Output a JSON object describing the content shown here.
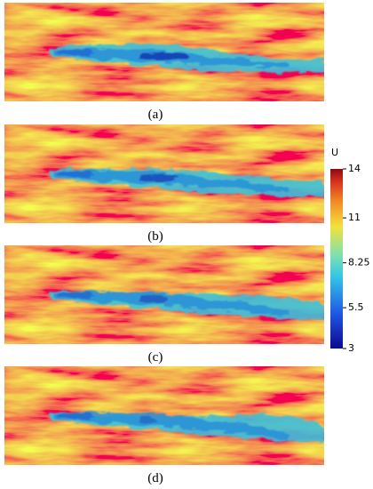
{
  "panels": [
    {
      "label": "(a)"
    },
    {
      "label": "(b)"
    },
    {
      "label": "(c)"
    },
    {
      "label": "(d)"
    }
  ],
  "colorbar": {
    "title": "U",
    "range": [
      3,
      14
    ],
    "ticks": [
      3,
      5.5,
      8.25,
      11,
      14
    ]
  }
}
